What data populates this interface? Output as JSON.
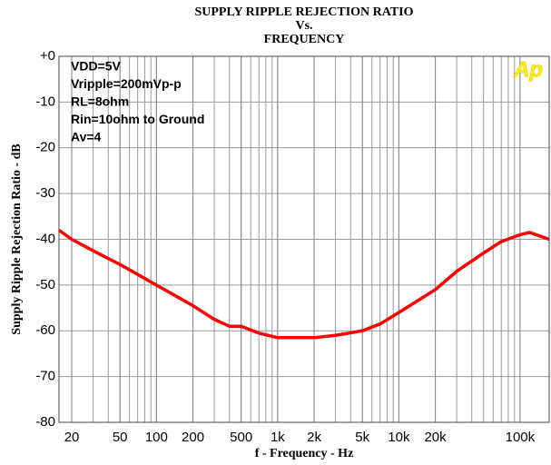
{
  "chart_data": {
    "type": "line",
    "title": [
      "SUPPLY RIPPLE REJECTION RATIO",
      "Vs.",
      "FREQUENCY"
    ],
    "xlabel": "f - Frequency - Hz",
    "ylabel": "Supply Ripple Rejection Ratio - dB",
    "annotations": [
      "VDD=5V",
      "Vripple=200mVp-p",
      "RL=8ohm",
      "Rin=10ohm to Ground",
      "Av=4"
    ],
    "logo": "Ap",
    "xscale": "log",
    "grid": true,
    "minor_grid": true,
    "xlim": [
      15.7,
      174000
    ],
    "ylim": [
      -80,
      0
    ],
    "xticks": [
      20,
      50,
      100,
      200,
      500,
      {
        "value": 1000,
        "label": "1k"
      },
      {
        "value": 2000,
        "label": "2k"
      },
      {
        "value": 5000,
        "label": "5k"
      },
      {
        "value": 10000,
        "label": "10k"
      },
      {
        "value": 20000,
        "label": "20k"
      },
      {
        "value": 100000,
        "label": "100k"
      }
    ],
    "yticks": [
      {
        "value": 0,
        "label": "+0"
      },
      -10,
      -20,
      -30,
      -40,
      -50,
      -60,
      -70,
      -80
    ],
    "series": [
      {
        "name": "SVRR",
        "color": "#ff0000",
        "x": [
          15.7,
          20,
          30,
          50,
          100,
          200,
          300,
          400,
          500,
          700,
          1000,
          2000,
          3000,
          5000,
          7000,
          10000,
          20000,
          30000,
          50000,
          70000,
          100000,
          120000,
          174000
        ],
        "values": [
          -38,
          -40,
          -42.5,
          -45.5,
          -50,
          -54.5,
          -57.5,
          -59,
          -59,
          -60.5,
          -61.5,
          -61.5,
          -61,
          -60,
          -58.5,
          -56,
          -51,
          -47,
          -43,
          -40.5,
          -39,
          -38.5,
          -40
        ]
      }
    ]
  }
}
